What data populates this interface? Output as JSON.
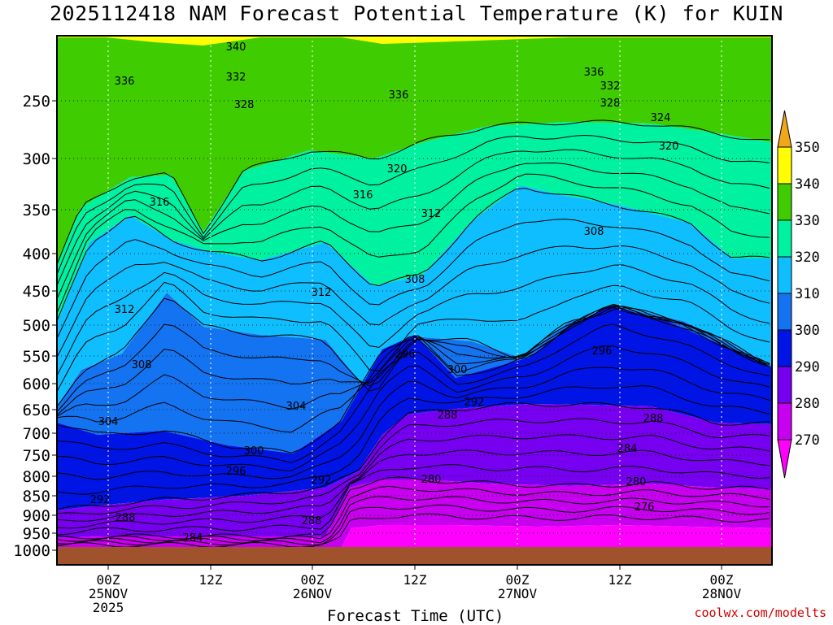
{
  "chart_data": {
    "type": "heatmap",
    "title": "2025112418 NAM Forecast Potential Temperature (K) for KUIN",
    "xlabel": "Forecast Time (UTC)",
    "ylabel": "",
    "x_ticks": [
      {
        "lines": [
          "00Z",
          "25NOV",
          "2025"
        ]
      },
      {
        "lines": [
          "12Z"
        ]
      },
      {
        "lines": [
          "00Z",
          "26NOV"
        ]
      },
      {
        "lines": [
          "12Z"
        ]
      },
      {
        "lines": [
          "00Z",
          "27NOV"
        ]
      },
      {
        "lines": [
          "12Z"
        ]
      },
      {
        "lines": [
          "00Z",
          "28NOV"
        ]
      }
    ],
    "y_ticks": [
      "250",
      "300",
      "350",
      "400",
      "450",
      "500",
      "550",
      "600",
      "650",
      "700",
      "750",
      "800",
      "850",
      "900",
      "950",
      "1000"
    ],
    "y_scale": "log-pressure (hPa), inverted",
    "colorbar": {
      "labels": [
        "350",
        "340",
        "330",
        "320",
        "310",
        "300",
        "290",
        "280",
        "270"
      ],
      "colors": [
        "#f2a61a",
        "#ffff00",
        "#3fcc00",
        "#00f2a0",
        "#0fbeff",
        "#1473f0",
        "#0014e6",
        "#7800f0",
        "#c800f0",
        "#ff00ff"
      ]
    },
    "contour_labels": [
      "340",
      "336",
      "332",
      "328",
      "336",
      "336",
      "332",
      "328",
      "324",
      "320",
      "320",
      "316",
      "316",
      "312",
      "312",
      "312",
      "308",
      "308",
      "308",
      "304",
      "304",
      "300",
      "300",
      "296",
      "296",
      "296",
      "292",
      "292",
      "292",
      "288",
      "288",
      "288",
      "288",
      "284",
      "284",
      "280",
      "280",
      "276"
    ],
    "grid": true,
    "surface_color": "#a0522d"
  },
  "watermark": "coolwx.com/modelts"
}
